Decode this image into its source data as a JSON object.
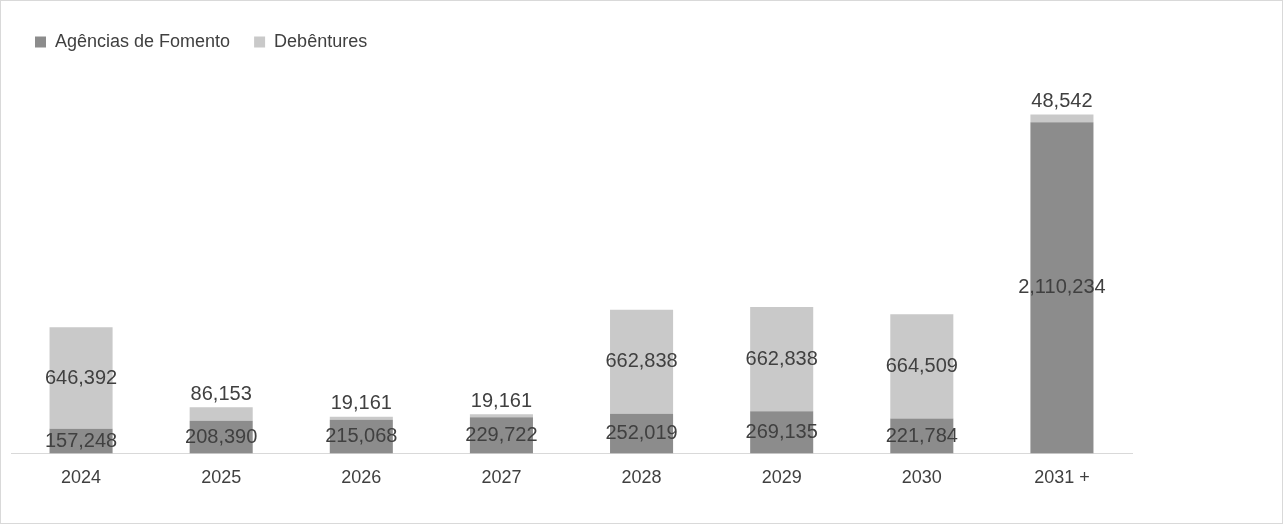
{
  "chart_data": {
    "type": "bar",
    "stacked": true,
    "categories": [
      "2024",
      "2025",
      "2026",
      "2027",
      "2028",
      "2029",
      "2030",
      "2031 +"
    ],
    "series": [
      {
        "name": "Agências de Fomento",
        "color": "#8c8c8c",
        "values": [
          157248,
          208390,
          215068,
          229722,
          252019,
          269135,
          221784,
          2110234
        ],
        "value_labels": [
          "157,248",
          "208,390",
          "215,068",
          "229,722",
          "252,019",
          "269,135",
          "221,784",
          "2,110,234"
        ]
      },
      {
        "name": "Debêntures",
        "color": "#c9c9c9",
        "values": [
          646392,
          86153,
          19161,
          19161,
          662838,
          662838,
          664509,
          48542
        ],
        "value_labels": [
          "646,392",
          "86,153",
          "19,161",
          "19,161",
          "662,838",
          "662,838",
          "664,509",
          "48,542"
        ]
      }
    ],
    "legend": "top left",
    "grid": false,
    "tick_labels": "x"
  }
}
